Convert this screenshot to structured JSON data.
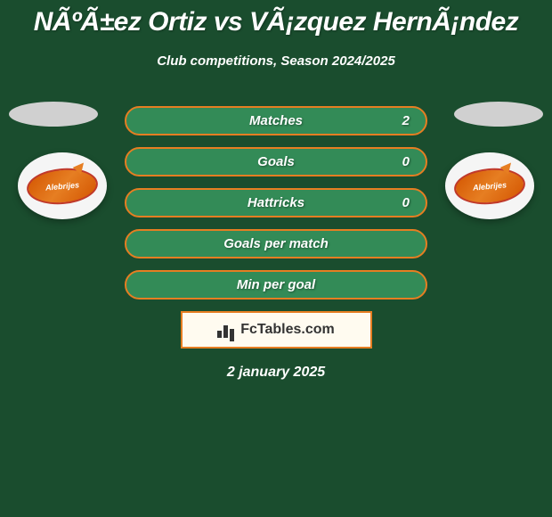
{
  "title": "NÃºÃ±ez Ortiz vs VÃ¡zquez HernÃ¡ndez",
  "subtitle": "Club competitions, Season 2024/2025",
  "stats": [
    {
      "label": "Matches",
      "value": "2",
      "has_value": true
    },
    {
      "label": "Goals",
      "value": "0",
      "has_value": true
    },
    {
      "label": "Hattricks",
      "value": "0",
      "has_value": true
    },
    {
      "label": "Goals per match",
      "value": "",
      "has_value": false
    },
    {
      "label": "Min per goal",
      "value": "",
      "has_value": false
    }
  ],
  "branding": {
    "text": "FcTables.com"
  },
  "date": "2 january 2025",
  "team_logo_text": "Alebrijes",
  "colors": {
    "background": "#1a4d2e",
    "bar_bg": "#338b57",
    "border": "#e67e22",
    "text": "#ffffff",
    "badge_bg": "#fffbf0"
  }
}
